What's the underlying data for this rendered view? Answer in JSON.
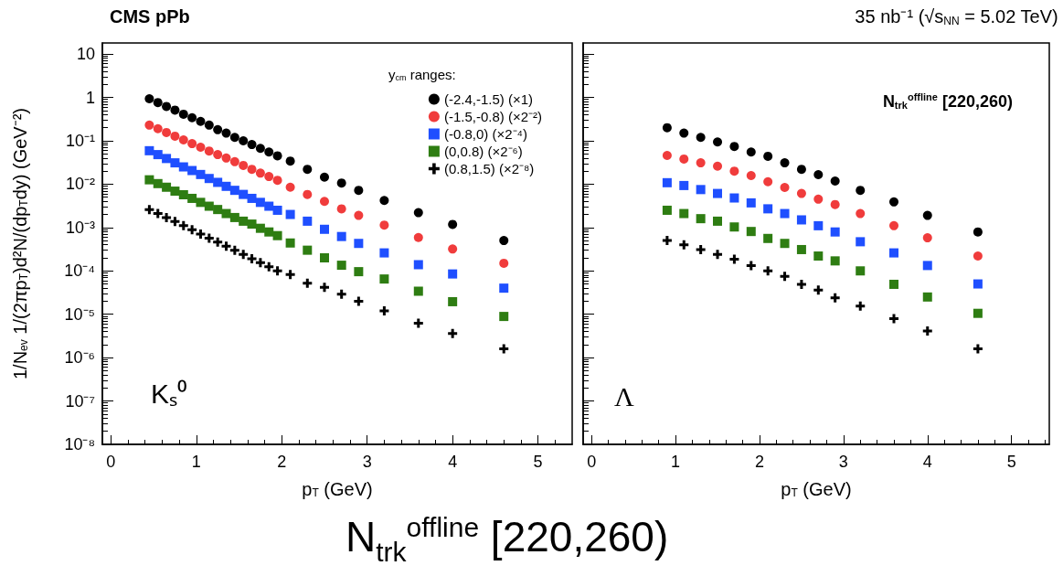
{
  "chart_data": [
    {
      "type": "scatter",
      "title": "CMS pPb",
      "xlabel": "p$_{T}$ (GeV)",
      "ylabel": "1/N$_{ev}$ 1/(2πp$_{T}$)d²N/(dp$_{T}$dy) (GeV⁻²)",
      "legend_title": "y$_{cm}$ ranges:",
      "legend": "top right",
      "log": "y",
      "annotations": [
        "Kₛ⁰"
      ],
      "xlim": [
        -0.1,
        5.4
      ],
      "xticks": [
        0,
        1,
        2,
        3,
        4,
        5
      ],
      "ylim": [
        1e-08,
        18
      ],
      "yticks": [
        {
          "value": 1e-08,
          "label": "10⁻⁸"
        },
        {
          "value": 1e-07,
          "label": "10⁻⁷"
        },
        {
          "value": 1e-06,
          "label": "10⁻⁶"
        },
        {
          "value": 1e-05,
          "label": "10⁻⁵"
        },
        {
          "value": 0.0001,
          "label": "10⁻⁴"
        },
        {
          "value": 0.001,
          "label": "10⁻³"
        },
        {
          "value": 0.01,
          "label": "10⁻²"
        },
        {
          "value": 0.1,
          "label": "10⁻¹"
        },
        1,
        10
      ],
      "x": [
        0.45,
        0.55,
        0.65,
        0.75,
        0.85,
        0.95,
        1.05,
        1.15,
        1.25,
        1.35,
        1.45,
        1.55,
        1.65,
        1.75,
        1.85,
        1.95,
        2.1,
        2.3,
        2.5,
        2.7,
        2.9,
        3.2,
        3.6,
        4.0,
        4.6
      ],
      "series": [
        {
          "name": "(-2.4,-1.5) (×1)",
          "color": "#000000",
          "marker": "circle",
          "values": [
            0.93,
            0.76,
            0.62,
            0.51,
            0.41,
            0.34,
            0.28,
            0.23,
            0.18,
            0.15,
            0.12,
            0.1,
            0.082,
            0.067,
            0.055,
            0.045,
            0.034,
            0.022,
            0.0145,
            0.0106,
            0.0072,
            0.0042,
            0.0022,
            0.00118,
            0.0005
          ]
        },
        {
          "name": "(-1.5,-0.8) (×2⁻²)",
          "color": "#f03c3c",
          "marker": "circle",
          "values": [
            0.23,
            0.19,
            0.155,
            0.128,
            0.105,
            0.086,
            0.071,
            0.058,
            0.048,
            0.04,
            0.033,
            0.027,
            0.022,
            0.018,
            0.015,
            0.0123,
            0.0085,
            0.0058,
            0.004,
            0.0027,
            0.0019,
            0.00114,
            0.00059,
            0.00032,
            0.00015
          ]
        },
        {
          "name": "(-0.8,0) (×2⁻⁴)",
          "color": "#1f4fff",
          "marker": "square",
          "values": [
            0.059,
            0.048,
            0.039,
            0.031,
            0.025,
            0.0206,
            0.0167,
            0.0135,
            0.011,
            0.0089,
            0.0072,
            0.0058,
            0.0047,
            0.0038,
            0.0031,
            0.0025,
            0.002,
            0.0014,
            0.00091,
            0.00062,
            0.00043,
            0.00026,
            0.000139,
            8.5e-05,
            4e-05
          ]
        },
        {
          "name": "(0,0.8) (×2⁻⁶)",
          "color": "#2e7d12",
          "marker": "square",
          "values": [
            0.0126,
            0.0103,
            0.0085,
            0.0069,
            0.0057,
            0.0047,
            0.0038,
            0.0031,
            0.0026,
            0.0021,
            0.0017,
            0.0014,
            0.0012,
            0.00096,
            0.00079,
            0.00065,
            0.00044,
            0.0003,
            0.0002,
            0.000135,
            9.6e-05,
            6.5e-05,
            3.4e-05,
            1.95e-05,
            8.9e-06
          ]
        },
        {
          "name": "(0.8,1.5) (×2⁻⁸)",
          "color": "#000000",
          "marker": "cross",
          "values": [
            0.0026,
            0.0021,
            0.0017,
            0.00137,
            0.0011,
            0.00089,
            0.00071,
            0.00057,
            0.00046,
            0.00037,
            0.0003,
            0.00024,
            0.00019,
            0.000155,
            0.000124,
            0.0001,
            8.2e-05,
            5.2e-05,
            4.2e-05,
            2.9e-05,
            2e-05,
            1.2e-05,
            6.2e-06,
            3.6e-06,
            1.6e-06
          ]
        }
      ]
    },
    {
      "type": "scatter",
      "title": "35 nb⁻¹ (√s$_{NN}$ = 5.02 TeV)",
      "xlabel": "p$_{T}$ (GeV)",
      "log": "y",
      "tick_labels": "x",
      "annotations": [
        "Λ",
        "N$_{trk}$$^{offline}$ [220,260)",
        "N$_{trk}$$^{offline}$ [220,260)"
      ],
      "xlim": [
        -0.1,
        5.45
      ],
      "xticks": [
        0,
        1,
        2,
        3,
        4,
        5
      ],
      "ylim": [
        1e-08,
        18
      ],
      "yticks": [
        1e-08,
        1e-07,
        1e-06,
        1e-05,
        0.0001,
        0.001,
        0.01,
        0.1,
        1,
        10
      ],
      "x": [
        0.9,
        1.1,
        1.3,
        1.5,
        1.7,
        1.9,
        2.1,
        2.3,
        2.5,
        2.7,
        2.9,
        3.2,
        3.6,
        4.0,
        4.6
      ],
      "series": [
        {
          "color": "#000000",
          "marker": "circle",
          "values": [
            0.2,
            0.15,
            0.12,
            0.094,
            0.074,
            0.055,
            0.044,
            0.031,
            0.022,
            0.0166,
            0.0118,
            0.0072,
            0.0039,
            0.0019,
            0.00079
          ]
        },
        {
          "color": "#f03c3c",
          "marker": "circle",
          "values": [
            0.046,
            0.038,
            0.031,
            0.026,
            0.02,
            0.0158,
            0.0114,
            0.0084,
            0.0061,
            0.0045,
            0.0034,
            0.0021,
            0.0011,
            0.00058,
            0.00022
          ]
        },
        {
          "color": "#1f4fff",
          "marker": "square",
          "values": [
            0.0108,
            0.0093,
            0.0075,
            0.0061,
            0.0048,
            0.0037,
            0.0027,
            0.0021,
            0.0015,
            0.0011,
            0.00079,
            0.00047,
            0.00026,
            0.000133,
            5e-05
          ]
        },
        {
          "color": "#2e7d12",
          "marker": "square",
          "values": [
            0.0025,
            0.0021,
            0.0016,
            0.0014,
            0.00103,
            0.00081,
            0.00056,
            0.00043,
            0.00031,
            0.00022,
            0.00017,
            0.0001,
            4.9e-05,
            2.5e-05,
            1.05e-05
          ]
        },
        {
          "color": "#000000",
          "marker": "cross",
          "values": [
            0.0005,
            0.0004,
            0.00031,
            0.00024,
            0.000185,
            0.000133,
            0.0001,
            7.5e-05,
            4.9e-05,
            3.6e-05,
            2.4e-05,
            1.55e-05,
            7.9e-06,
            4.1e-06,
            1.6e-06
          ]
        }
      ]
    }
  ]
}
